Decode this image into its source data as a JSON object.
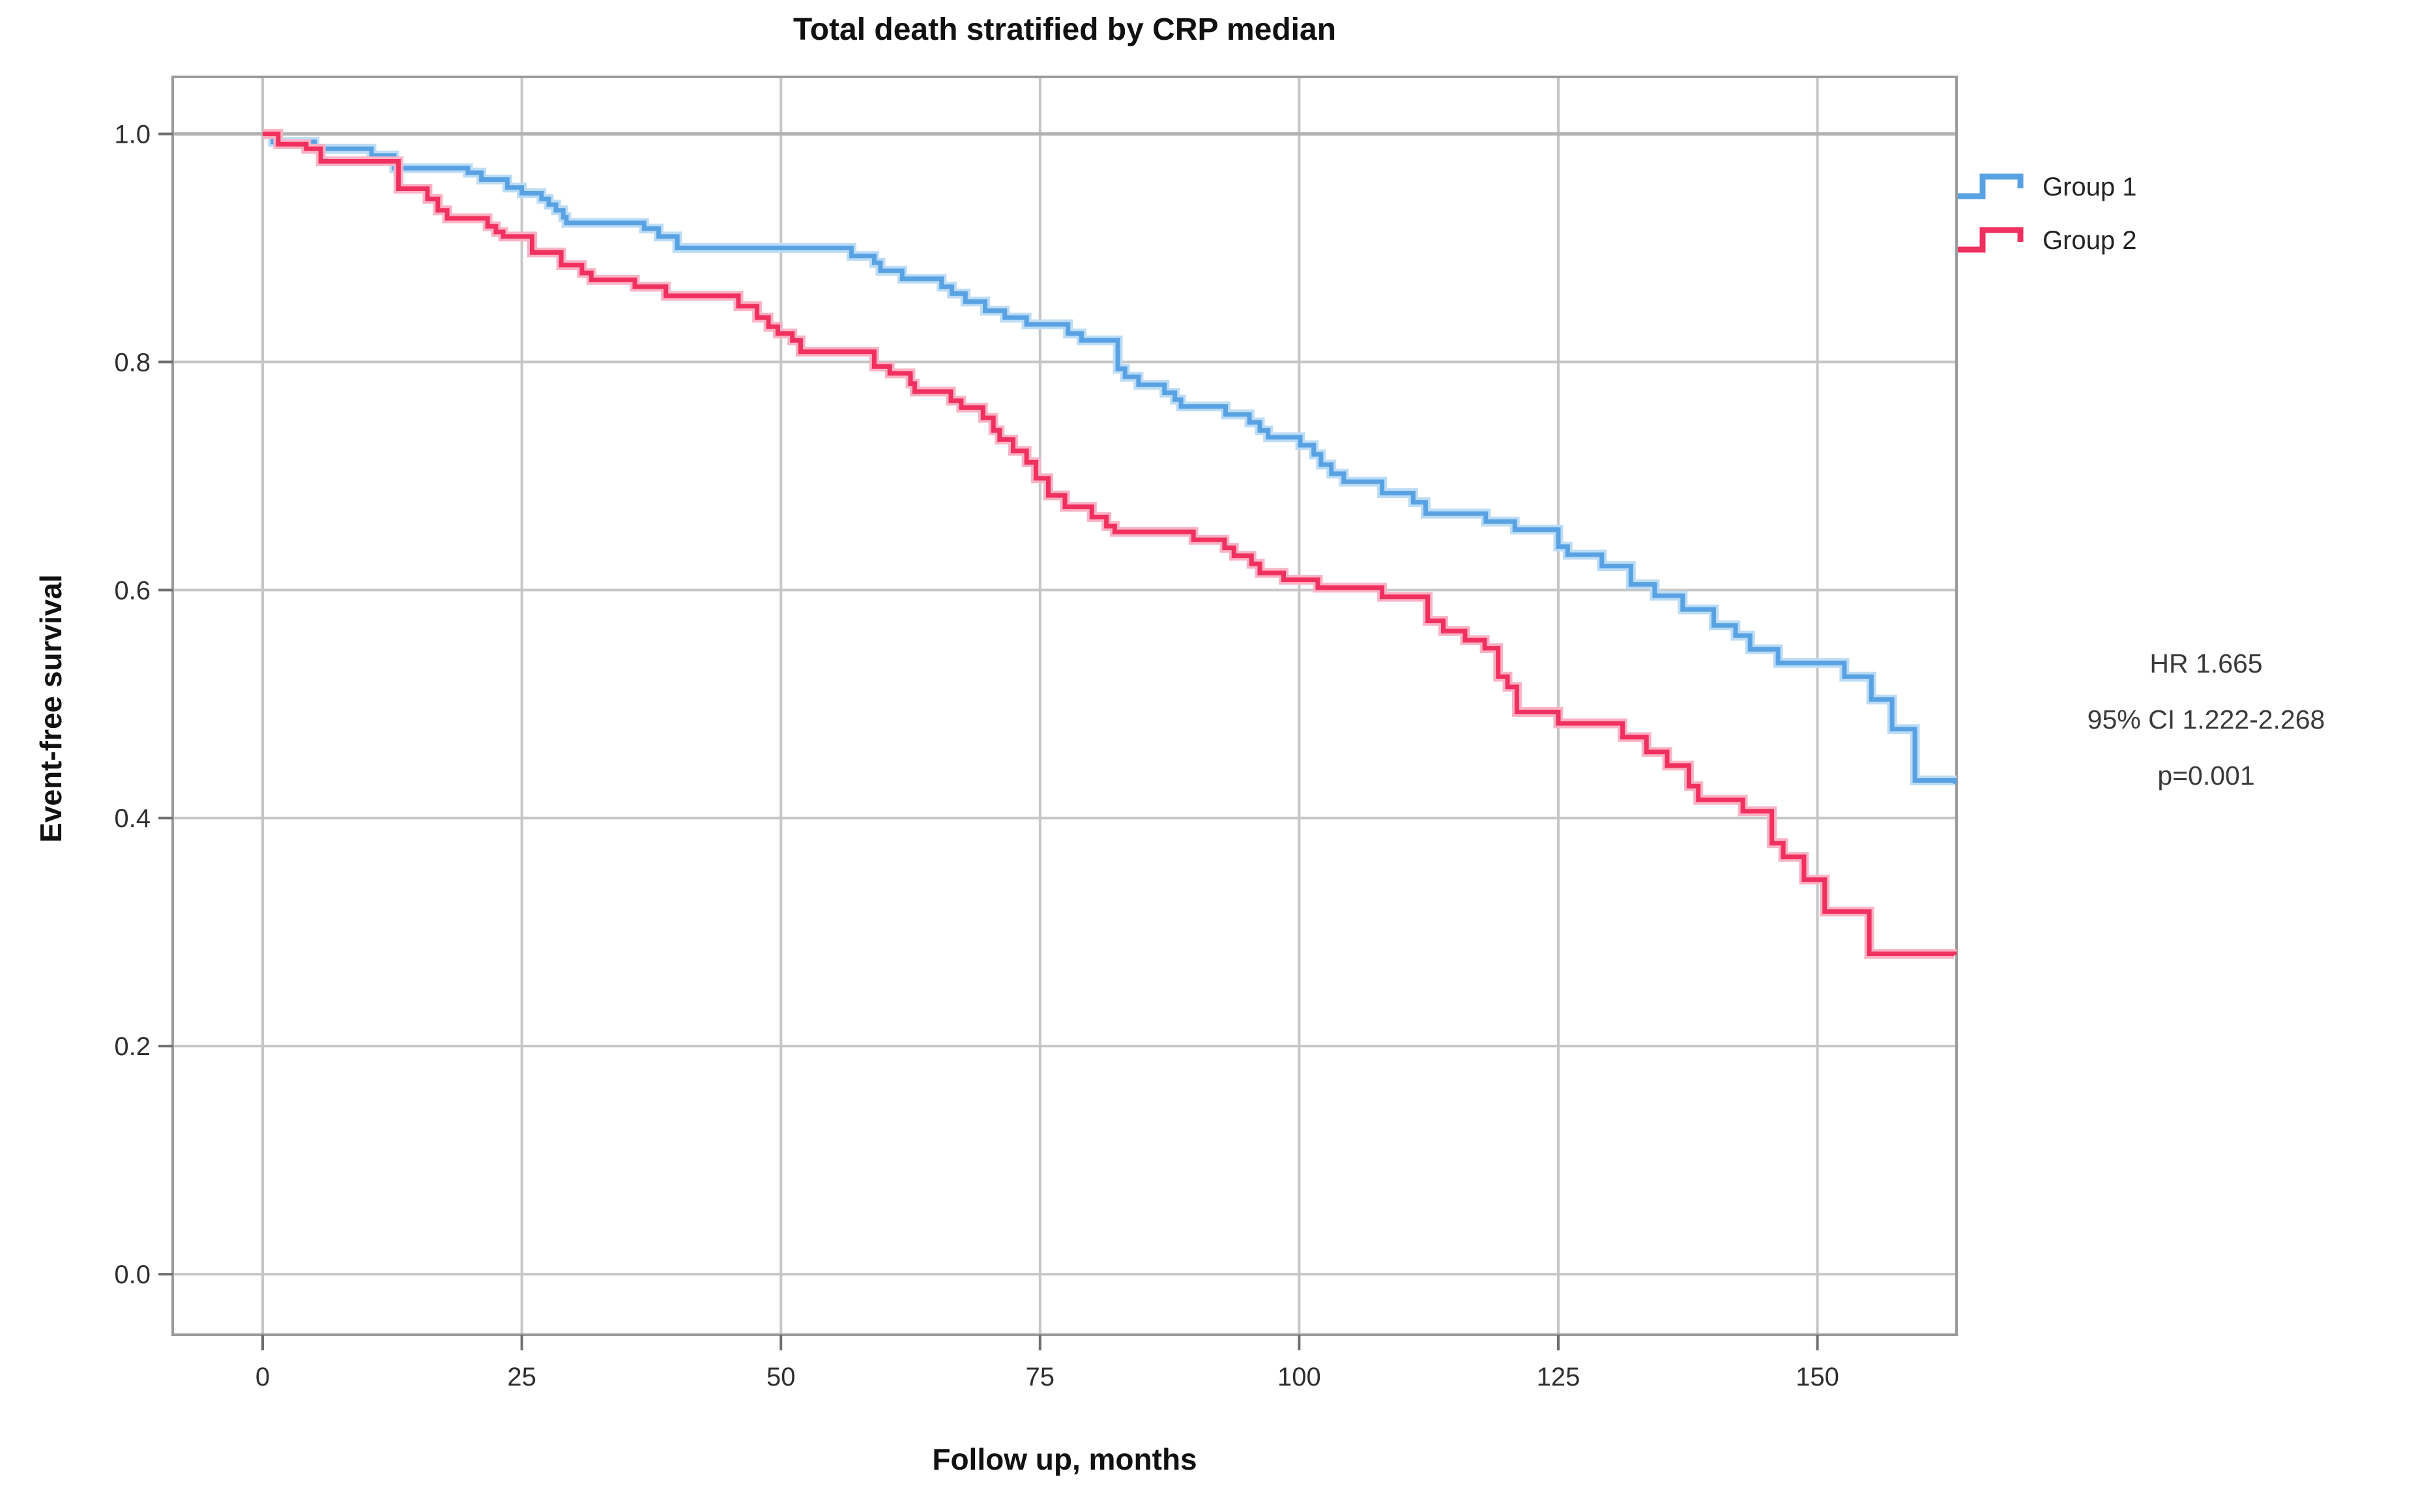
{
  "chart_data": {
    "type": "line",
    "subtype": "kaplan-meier-step",
    "title": "Total death stratified by CRP median",
    "xlabel": "Follow up, months",
    "ylabel": "Event-free survival",
    "xlim": [
      -8.68,
      163.42
    ],
    "ylim": [
      -0.0531,
      1.05
    ],
    "grid": true,
    "xticks": [
      0,
      25,
      50,
      75,
      100,
      125,
      150
    ],
    "yticks": [
      "0.0",
      "0.2",
      "0.4",
      "0.6",
      "0.8",
      "1.0"
    ],
    "ytick_values": [
      0.0,
      0.2,
      0.4,
      0.6,
      0.8,
      1.0
    ],
    "legend_position": "right-top",
    "annotation": {
      "line1": "HR 1.665",
      "line2": "95% CI 1.222-2.268",
      "line3": "p=0.001"
    },
    "series": [
      {
        "name": "Group 1",
        "color": "#58a2e3",
        "halo": "#bcdcf5",
        "steps": [
          [
            0,
            1.0
          ],
          [
            1,
            0.993
          ],
          [
            5,
            0.987
          ],
          [
            10.5,
            0.981
          ],
          [
            12.7,
            0.97
          ],
          [
            19.8,
            0.966
          ],
          [
            21.1,
            0.96
          ],
          [
            23.6,
            0.953
          ],
          [
            25.0,
            0.948
          ],
          [
            26.9,
            0.943
          ],
          [
            27.6,
            0.938
          ],
          [
            28.3,
            0.933
          ],
          [
            29.0,
            0.927
          ],
          [
            29.3,
            0.922
          ],
          [
            36.8,
            0.917
          ],
          [
            38.2,
            0.91
          ],
          [
            40.0,
            0.9
          ],
          [
            56.8,
            0.893
          ],
          [
            59.0,
            0.887
          ],
          [
            59.6,
            0.88
          ],
          [
            61.7,
            0.873
          ],
          [
            65.5,
            0.866
          ],
          [
            66.5,
            0.86
          ],
          [
            67.8,
            0.853
          ],
          [
            69.7,
            0.845
          ],
          [
            71.6,
            0.839
          ],
          [
            73.7,
            0.833
          ],
          [
            77.7,
            0.825
          ],
          [
            79.0,
            0.819
          ],
          [
            82.5,
            0.794
          ],
          [
            83.2,
            0.787
          ],
          [
            84.5,
            0.78
          ],
          [
            87.0,
            0.773
          ],
          [
            88.0,
            0.767
          ],
          [
            88.6,
            0.761
          ],
          [
            92.9,
            0.754
          ],
          [
            95.2,
            0.747
          ],
          [
            96.2,
            0.74
          ],
          [
            97.0,
            0.734
          ],
          [
            100.1,
            0.727
          ],
          [
            101.4,
            0.719
          ],
          [
            102.1,
            0.71
          ],
          [
            103.1,
            0.702
          ],
          [
            104.3,
            0.695
          ],
          [
            108.0,
            0.685
          ],
          [
            111.0,
            0.677
          ],
          [
            112.2,
            0.667
          ],
          [
            118.0,
            0.66
          ],
          [
            120.8,
            0.653
          ],
          [
            125.0,
            0.638
          ],
          [
            125.9,
            0.631
          ],
          [
            129.2,
            0.621
          ],
          [
            132.0,
            0.605
          ],
          [
            134.3,
            0.595
          ],
          [
            137.0,
            0.583
          ],
          [
            140.0,
            0.569
          ],
          [
            142.1,
            0.56
          ],
          [
            143.5,
            0.548
          ],
          [
            146.2,
            0.536
          ],
          [
            152.6,
            0.524
          ],
          [
            155.2,
            0.504
          ],
          [
            157.2,
            0.478
          ],
          [
            159.4,
            0.433
          ],
          [
            163.3,
            0.43
          ]
        ]
      },
      {
        "name": "Group 2",
        "color": "#f0305f",
        "halo": "#f9b3c5",
        "steps": [
          [
            0,
            1.0
          ],
          [
            1.5,
            0.991
          ],
          [
            4.2,
            0.987
          ],
          [
            5.6,
            0.976
          ],
          [
            13.1,
            0.952
          ],
          [
            15.9,
            0.943
          ],
          [
            16.9,
            0.933
          ],
          [
            17.8,
            0.926
          ],
          [
            21.7,
            0.919
          ],
          [
            22.5,
            0.914
          ],
          [
            23.2,
            0.91
          ],
          [
            26.0,
            0.896
          ],
          [
            28.8,
            0.885
          ],
          [
            30.8,
            0.878
          ],
          [
            31.7,
            0.872
          ],
          [
            35.9,
            0.866
          ],
          [
            38.9,
            0.858
          ],
          [
            45.9,
            0.849
          ],
          [
            47.7,
            0.839
          ],
          [
            48.8,
            0.831
          ],
          [
            49.7,
            0.825
          ],
          [
            51.1,
            0.819
          ],
          [
            51.9,
            0.809
          ],
          [
            59.0,
            0.796
          ],
          [
            60.5,
            0.79
          ],
          [
            62.5,
            0.781
          ],
          [
            62.9,
            0.774
          ],
          [
            66.4,
            0.766
          ],
          [
            67.4,
            0.76
          ],
          [
            69.5,
            0.751
          ],
          [
            70.5,
            0.74
          ],
          [
            71.1,
            0.732
          ],
          [
            72.4,
            0.722
          ],
          [
            73.7,
            0.712
          ],
          [
            74.6,
            0.698
          ],
          [
            75.8,
            0.683
          ],
          [
            77.4,
            0.673
          ],
          [
            80.0,
            0.664
          ],
          [
            81.4,
            0.656
          ],
          [
            82.2,
            0.651
          ],
          [
            89.8,
            0.644
          ],
          [
            92.8,
            0.637
          ],
          [
            93.7,
            0.63
          ],
          [
            95.4,
            0.623
          ],
          [
            96.2,
            0.615
          ],
          [
            98.5,
            0.609
          ],
          [
            101.8,
            0.602
          ],
          [
            108.0,
            0.594
          ],
          [
            112.4,
            0.573
          ],
          [
            113.9,
            0.564
          ],
          [
            116.0,
            0.556
          ],
          [
            117.9,
            0.549
          ],
          [
            119.2,
            0.524
          ],
          [
            120.1,
            0.515
          ],
          [
            121.0,
            0.493
          ],
          [
            125.0,
            0.483
          ],
          [
            131.2,
            0.471
          ],
          [
            133.5,
            0.458
          ],
          [
            135.5,
            0.446
          ],
          [
            137.6,
            0.428
          ],
          [
            138.5,
            0.416
          ],
          [
            142.8,
            0.406
          ],
          [
            145.6,
            0.378
          ],
          [
            146.7,
            0.366
          ],
          [
            148.7,
            0.346
          ],
          [
            150.7,
            0.318
          ],
          [
            155.0,
            0.281
          ],
          [
            163.2,
            0.28
          ]
        ]
      }
    ],
    "style": {
      "grid_color": "#c6c6c6",
      "top_grid_color": "#b2b2b2",
      "frame_color": "#9b9b9b",
      "tick_color": "#6f6f6f",
      "tick_label_color": "#2e2e2e",
      "background": "#ffffff"
    }
  }
}
